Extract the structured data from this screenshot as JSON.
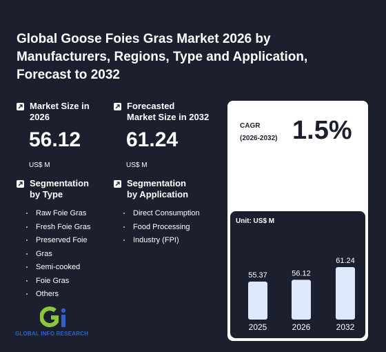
{
  "title": "Global Goose Foies Gras Market 2026 by Manufacturers, Regions, Type and Application, Forecast to 2032",
  "market_size": {
    "label_line1": "Market Size in",
    "label_line2": "2026",
    "value": "56.12",
    "unit": "US$ M"
  },
  "forecast_size": {
    "label_line1": "Forecasted",
    "label_line2": "Market Size in 2032",
    "value": "61.24",
    "unit": "US$ M"
  },
  "seg_type": {
    "label_line1": "Segmentation",
    "label_line2": "by Type",
    "items": [
      "Raw Foie Gras",
      "Fresh Foie Gras",
      "Preserved Foie",
      "Gras",
      "Semi-cooked",
      "Foie Gras",
      "Others"
    ]
  },
  "seg_app": {
    "label_line1": "Segmentation",
    "label_line2": "by Application",
    "items": [
      "Direct Consumption",
      "Food Processing",
      "Industry (FPI)"
    ]
  },
  "cagr": {
    "label_line1": "CAGR",
    "label_line2": "(2026-2032)",
    "value": "1.5%"
  },
  "logo": {
    "text": "GLOBAL INFO RESEARCH"
  },
  "chart_data": {
    "type": "bar",
    "unit_label": "Unit: US$ M",
    "categories": [
      "2025",
      "2026",
      "2032"
    ],
    "values": [
      55.37,
      56.12,
      61.24
    ],
    "value_labels": [
      "55.37",
      "56.12",
      "61.24"
    ],
    "bar_color": "#dde8fb"
  }
}
